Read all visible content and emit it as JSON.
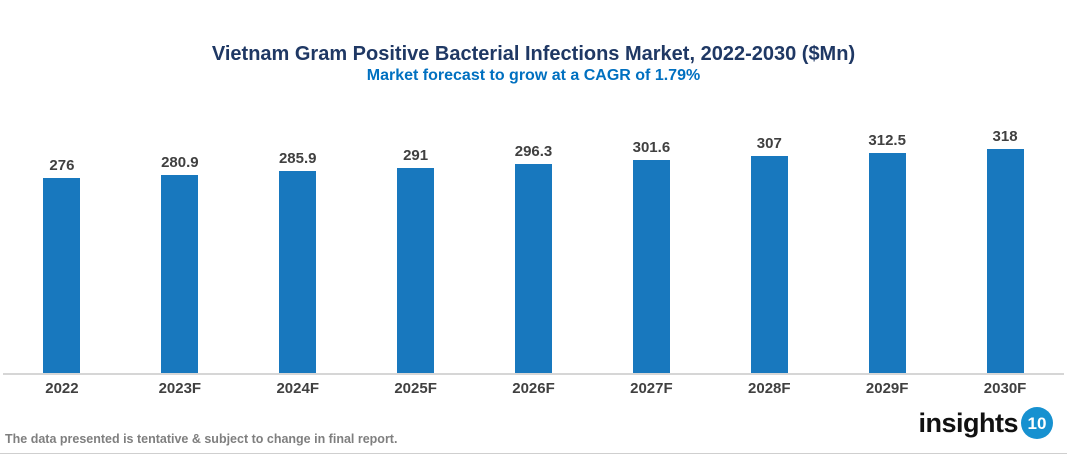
{
  "header": {
    "title": "Vietnam Gram Positive Bacterial Infections Market, 2022-2030 ($Mn)",
    "subtitle": "Market forecast to grow at a CAGR of 1.79%"
  },
  "chart_data": {
    "type": "bar",
    "categories": [
      "2022",
      "2023F",
      "2024F",
      "2025F",
      "2026F",
      "2027F",
      "2028F",
      "2029F",
      "2030F"
    ],
    "values": [
      276,
      280.9,
      285.9,
      291,
      296.3,
      301.6,
      307,
      312.5,
      318
    ],
    "title": "Vietnam Gram Positive Bacterial Infections Market, 2022-2030 ($Mn)",
    "subtitle": "Market forecast to grow at a CAGR of 1.79%",
    "xlabel": "",
    "ylabel": "",
    "ylim": [
      0,
      380
    ],
    "grid": false,
    "legend": "none",
    "data_labels": true,
    "bar_color": "#1878BE"
  },
  "colors": {
    "title": "#1F3864",
    "subtitle": "#0070C0",
    "bar": "#1878BE",
    "value_label": "#404040",
    "tick_label": "#404040",
    "axis_line": "#D6D6D6",
    "disclaimer": "#7F7F7F",
    "logo_text": "#111111",
    "logo_badge_bg": "#1791D0"
  },
  "footer": {
    "disclaimer": "The data presented is tentative & subject to change in final report.",
    "logo_text": "insights",
    "logo_badge": "10"
  }
}
